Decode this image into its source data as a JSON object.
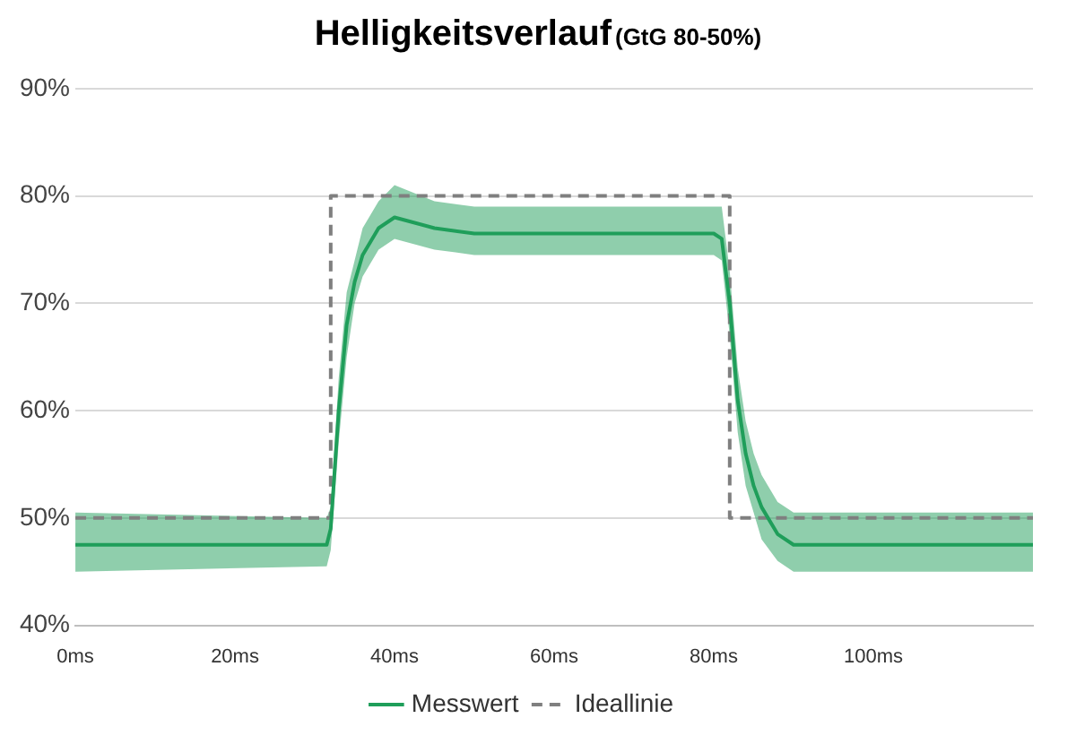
{
  "chart_data": {
    "type": "line",
    "title": "Helligkeitsverlauf",
    "subtitle": "(GtG 80-50%)",
    "series": [
      {
        "name": "Messwert",
        "color": "#1f9e5a",
        "line_style": "solid",
        "x": [
          0,
          31.5,
          32,
          33,
          34,
          35,
          36,
          38,
          40,
          45,
          50,
          60,
          70,
          80,
          81,
          82,
          83,
          84,
          85,
          86,
          88,
          90,
          120
        ],
        "values": [
          47.5,
          47.5,
          49,
          60,
          68,
          72,
          74.5,
          77,
          78,
          77,
          76.5,
          76.5,
          76.5,
          76.5,
          76,
          70,
          61,
          56,
          53,
          51,
          48.5,
          47.5,
          47.5
        ],
        "lower": [
          45,
          45.5,
          47,
          57,
          65,
          70,
          72.5,
          75,
          76,
          75,
          74.5,
          74.5,
          74.5,
          74.5,
          74,
          67,
          58,
          53,
          50.5,
          48,
          46,
          45,
          45
        ],
        "upper": [
          50.5,
          50,
          51,
          63,
          71,
          74,
          77,
          79.5,
          81,
          79.5,
          79,
          79,
          79,
          79,
          79,
          73,
          64,
          59,
          56,
          54,
          51.5,
          50.5,
          50.5
        ]
      },
      {
        "name": "Ideallinie",
        "color": "#7f7f7f",
        "line_style": "dashed",
        "x": [
          0,
          32,
          32,
          82,
          82,
          120
        ],
        "values": [
          50,
          50,
          80,
          80,
          50,
          50
        ]
      }
    ],
    "xlim": [
      0,
      120
    ],
    "xticks": [
      {
        "value": 0,
        "label": "0ms"
      },
      {
        "value": 20,
        "label": "20ms"
      },
      {
        "value": 40,
        "label": "40ms"
      },
      {
        "value": 60,
        "label": "60ms"
      },
      {
        "value": 80,
        "label": "80ms"
      },
      {
        "value": 100,
        "label": "100ms"
      }
    ],
    "ylim": [
      40,
      90
    ],
    "yticks": [
      {
        "value": 40,
        "label": "40%"
      },
      {
        "value": 50,
        "label": "50%"
      },
      {
        "value": 60,
        "label": "60%"
      },
      {
        "value": 70,
        "label": "70%"
      },
      {
        "value": 80,
        "label": "80%"
      },
      {
        "value": 90,
        "label": "90%"
      }
    ],
    "grid": "y",
    "legend": "bottom",
    "marker": "none"
  }
}
